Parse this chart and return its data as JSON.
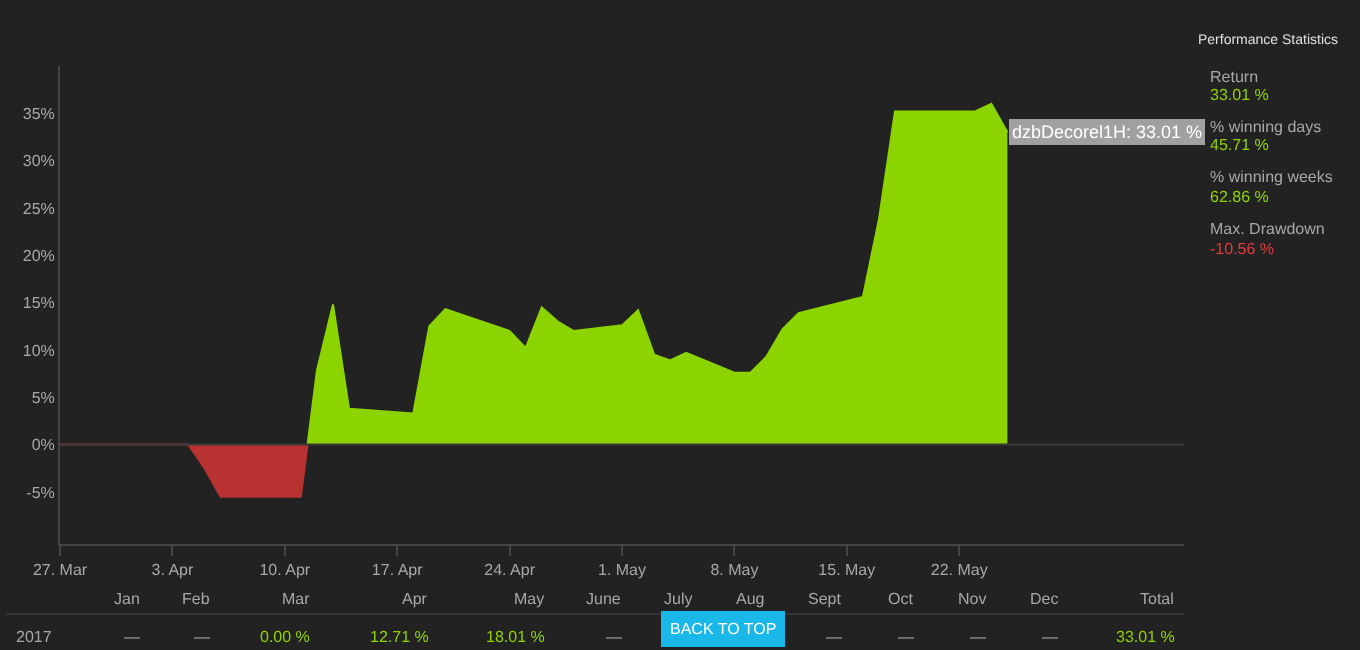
{
  "chart_data": {
    "type": "area",
    "xlim": [
      "2017-03-27",
      "2017-06-05"
    ],
    "xticks": [
      {
        "value": "2017-03-27",
        "label": "27. Mar"
      },
      {
        "value": "2017-04-03",
        "label": "3. Apr"
      },
      {
        "value": "2017-04-10",
        "label": "10. Apr"
      },
      {
        "value": "2017-04-17",
        "label": "17. Apr"
      },
      {
        "value": "2017-04-24",
        "label": "24. Apr"
      },
      {
        "value": "2017-05-01",
        "label": "1. May"
      },
      {
        "value": "2017-05-08",
        "label": "8. May"
      },
      {
        "value": "2017-05-15",
        "label": "15. May"
      },
      {
        "value": "2017-05-22",
        "label": "22. May"
      }
    ],
    "ylim": [
      -10.5,
      40
    ],
    "yticks": [
      {
        "value": -5,
        "label": "-5%"
      },
      {
        "value": 0,
        "label": "0%"
      },
      {
        "value": 5,
        "label": "5%"
      },
      {
        "value": 10,
        "label": "10%"
      },
      {
        "value": 15,
        "label": "15%"
      },
      {
        "value": 20,
        "label": "20%"
      },
      {
        "value": 25,
        "label": "25%"
      },
      {
        "value": 30,
        "label": "30%"
      },
      {
        "value": 35,
        "label": "35%"
      }
    ],
    "grid": false,
    "ref_lines": [
      {
        "axis": "y",
        "value": 0,
        "color": "#3a3a3a"
      }
    ],
    "series": [
      {
        "color": "#b83232",
        "x": [
          "2017-03-27",
          "2017-04-04",
          "2017-04-05",
          "2017-04-06",
          "2017-04-11",
          "2017-04-11T10:00"
        ],
        "values": [
          0,
          0,
          -2.5,
          -5.5,
          -5.5,
          0
        ]
      },
      {
        "color": "#8cd400",
        "x": [
          "2017-04-11T10:00",
          "2017-04-12",
          "2017-04-13",
          "2017-04-14",
          "2017-04-18",
          "2017-04-19",
          "2017-04-20",
          "2017-04-24",
          "2017-04-25",
          "2017-04-26",
          "2017-04-27",
          "2017-04-28",
          "2017-05-01",
          "2017-05-02",
          "2017-05-03",
          "2017-05-04",
          "2017-05-05",
          "2017-05-08",
          "2017-05-09",
          "2017-05-10",
          "2017-05-11",
          "2017-05-12",
          "2017-05-16",
          "2017-05-17",
          "2017-05-18",
          "2017-05-23",
          "2017-05-24",
          "2017-05-25"
        ],
        "values": [
          0,
          7.8,
          14.8,
          3.8,
          3.3,
          12.5,
          14.3,
          12,
          10.2,
          14.5,
          13,
          12,
          12.6,
          14.2,
          9.5,
          8.9,
          9.7,
          7.6,
          7.6,
          9.3,
          12.2,
          13.9,
          15.6,
          23.8,
          35.2,
          35.2,
          36,
          33.01
        ]
      }
    ],
    "annotations": [
      "Performance Statistics",
      "Return",
      "33.01 %",
      "% winning days",
      "45.71 %",
      "% winning weeks",
      "62.86 %",
      "Max. Drawdown",
      "-10.56 %",
      "Jan",
      "Feb",
      "Mar",
      "Apr",
      "May",
      "June",
      "July",
      "Aug",
      "Sept",
      "Oct",
      "Nov",
      "Dec",
      "Total",
      "2017",
      "—",
      "—",
      "0.00 %",
      "12.71 %",
      "18.01 %",
      "—",
      "—",
      "—",
      "—",
      "—",
      "33.01 %",
      "BACK TO TOP",
      {
        "text": "dzbDecorel1H: 33.01 %",
        "x": "2017-05-25",
        "y": 33.01
      }
    ]
  }
}
